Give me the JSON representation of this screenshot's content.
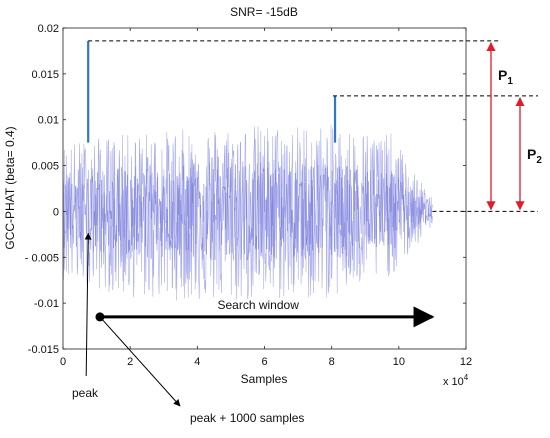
{
  "chart_data": {
    "type": "line",
    "title": "SNR= -15dB",
    "xlabel": "Samples",
    "ylabel": "GCC-PHAT (beta= 0.4)",
    "x_scale_note": "x 10",
    "x_scale_exponent": "4",
    "xlim": [
      0,
      12
    ],
    "ylim": [
      -0.015,
      0.02
    ],
    "x_ticks": [
      "0",
      "2",
      "4",
      "6",
      "8",
      "10",
      "12"
    ],
    "y_ticks": [
      "-0.015",
      "-0.01",
      "- 0.005",
      "0",
      "0.005",
      "0.01",
      "0.015",
      "0.02"
    ],
    "series": [
      {
        "color": "#9a9ee8",
        "noise_envelope": {
          "x_range": [
            0,
            11
          ],
          "upper": [
            [
              0,
              0.0075
            ],
            [
              2,
              0.0085
            ],
            [
              5,
              0.0095
            ],
            [
              8,
              0.0095
            ],
            [
              9.8,
              0.0085
            ],
            [
              10.5,
              0.004
            ],
            [
              11,
              0.0015
            ]
          ],
          "lower": [
            [
              0,
              -0.0075
            ],
            [
              2,
              -0.0095
            ],
            [
              5,
              -0.01
            ],
            [
              8,
              -0.0095
            ],
            [
              9.8,
              -0.007
            ],
            [
              10.5,
              -0.004
            ],
            [
              11,
              -0.0015
            ]
          ]
        }
      }
    ],
    "peaks": [
      {
        "x": 0.75,
        "y": 0.0186,
        "color": "#2e78c8"
      },
      {
        "x": 8.1,
        "y": 0.0126,
        "color": "#2e78c8"
      }
    ],
    "annotations": {
      "peak_label": "peak",
      "peak_offset_label": "peak + 1000 samples",
      "search_window_label": "Search window",
      "search_window_x": [
        1.1,
        11
      ],
      "search_window_y": -0.0115,
      "p1": {
        "label": "P",
        "sub": "1"
      },
      "p2": {
        "label": "P",
        "sub": "2"
      }
    },
    "grid": false,
    "legend": "none"
  }
}
